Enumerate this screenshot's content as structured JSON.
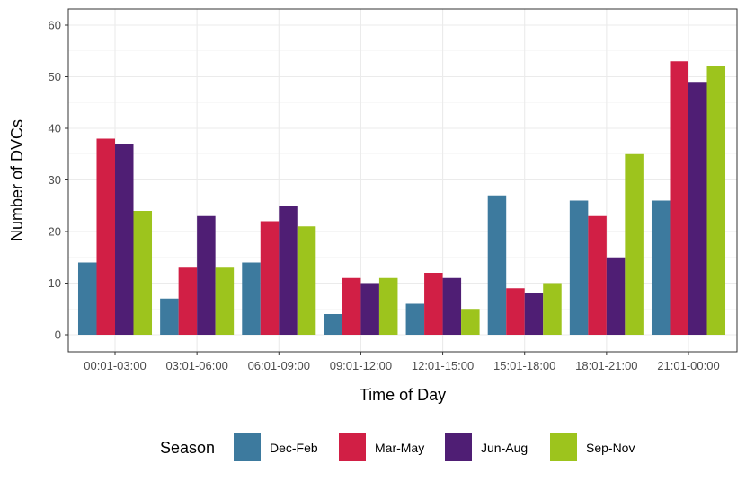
{
  "chart_data": {
    "type": "bar",
    "xlabel": "Time of Day",
    "ylabel": "Number of DVCs",
    "ylim": [
      0,
      60
    ],
    "yticks": [
      0,
      10,
      20,
      30,
      40,
      50,
      60
    ],
    "grid": true,
    "legend_position": "bottom",
    "legend_title": "Season",
    "categories": [
      "00:01-03:00",
      "03:01-06:00",
      "06:01-09:00",
      "09:01-12:00",
      "12:01-15:00",
      "15:01-18:00",
      "18:01-21:00",
      "21:01-00:00"
    ],
    "series": [
      {
        "name": "Dec-Feb",
        "color": "#3d7a9e",
        "values": [
          14,
          7,
          14,
          4,
          6,
          27,
          26,
          26
        ]
      },
      {
        "name": "Mar-May",
        "color": "#d11f45",
        "values": [
          38,
          13,
          22,
          11,
          12,
          9,
          23,
          53
        ]
      },
      {
        "name": "Jun-Aug",
        "color": "#4f1e74",
        "values": [
          37,
          23,
          25,
          10,
          11,
          8,
          15,
          49
        ]
      },
      {
        "name": "Sep-Nov",
        "color": "#9dc41d",
        "values": [
          24,
          13,
          21,
          11,
          5,
          10,
          35,
          52
        ]
      }
    ]
  }
}
